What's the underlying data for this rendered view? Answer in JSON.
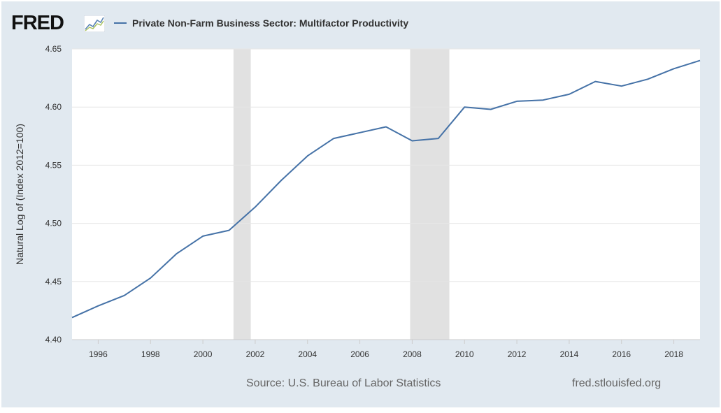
{
  "header": {
    "logo_text": "FRED",
    "logo_icon": "line-graph-icon",
    "series_title": "Private Non-Farm Business Sector: Multifactor Productivity"
  },
  "footer": {
    "source": "Source: U.S. Bureau of Labor Statistics",
    "site": "fred.stlouisfed.org"
  },
  "colors": {
    "series": "#4572a7",
    "recession": "#e1e1e1",
    "frame": "#e1e9f0"
  },
  "chart_data": {
    "type": "line",
    "title": "Private Non-Farm Business Sector: Multifactor Productivity",
    "xlabel": "",
    "ylabel": "Natural Log of (Index 2012=100)",
    "xlim": [
      1995,
      2019
    ],
    "ylim": [
      4.4,
      4.65
    ],
    "xticks": [
      1996,
      1998,
      2000,
      2002,
      2004,
      2006,
      2008,
      2010,
      2012,
      2014,
      2016,
      2018
    ],
    "yticks": [
      4.4,
      4.45,
      4.5,
      4.55,
      4.6,
      4.65
    ],
    "ytick_labels": [
      "4.40",
      "4.45",
      "4.50",
      "4.55",
      "4.60",
      "4.65"
    ],
    "grid": "horizontal",
    "legend": "top-left",
    "recessions": [
      [
        2001.17,
        2001.83
      ],
      [
        2007.92,
        2009.42
      ]
    ],
    "series": [
      {
        "name": "Private Non-Farm Business Sector: Multifactor Productivity",
        "x": [
          1995,
          1996,
          1997,
          1998,
          1999,
          2000,
          2001,
          2002,
          2003,
          2004,
          2005,
          2006,
          2007,
          2008,
          2009,
          2010,
          2011,
          2012,
          2013,
          2014,
          2015,
          2016,
          2017,
          2018,
          2019
        ],
        "values": [
          4.419,
          4.429,
          4.438,
          4.453,
          4.474,
          4.489,
          4.494,
          4.514,
          4.537,
          4.558,
          4.573,
          4.578,
          4.583,
          4.571,
          4.573,
          4.6,
          4.598,
          4.605,
          4.606,
          4.611,
          4.622,
          4.618,
          4.624,
          4.633,
          4.64
        ]
      }
    ]
  }
}
